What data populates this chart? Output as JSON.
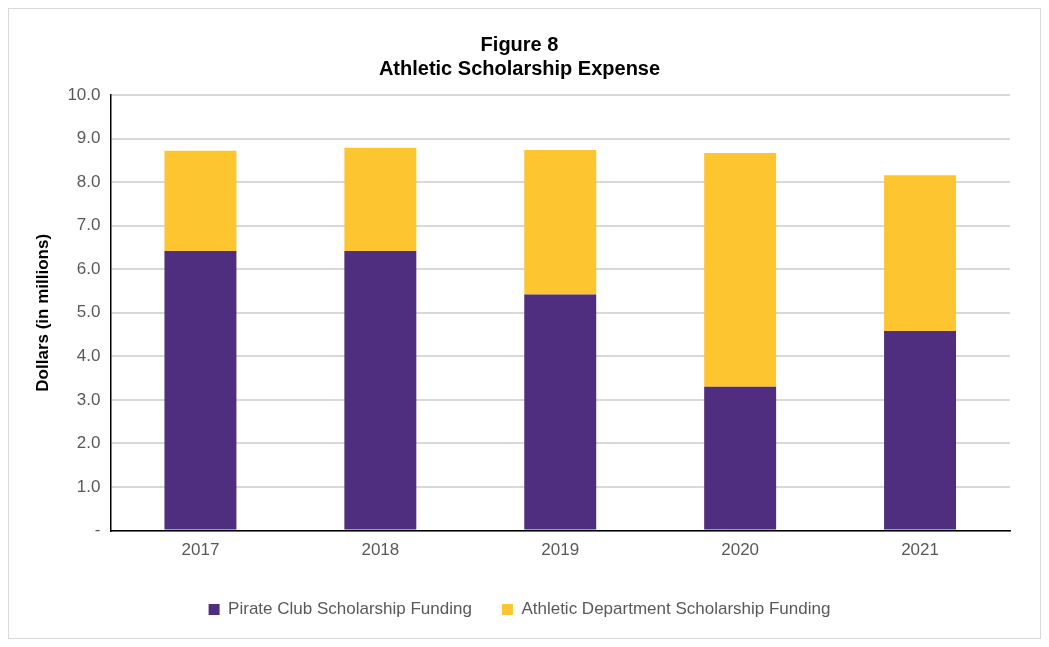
{
  "chart_data": {
    "type": "bar",
    "title": "Figure 8\nAthletic Scholarship Expense",
    "ylabel": "Dollars (in millions)",
    "categories": [
      "2017",
      "2018",
      "2019",
      "2020",
      "2021"
    ],
    "stacked": true,
    "series": [
      {
        "name": "Pirate Club Scholarship Funding",
        "color": "#4f2d7f",
        "values": [
          6.42,
          6.42,
          5.42,
          3.3,
          4.58
        ]
      },
      {
        "name": "Athletic Department Scholarship Funding",
        "color": "#fdc530",
        "values": [
          2.3,
          2.37,
          3.32,
          5.37,
          3.58
        ]
      }
    ],
    "ylim": [
      0,
      10
    ],
    "yticks": [
      {
        "value": 0,
        "label": "-"
      },
      {
        "value": 1,
        "label": "1.0"
      },
      {
        "value": 2,
        "label": "2.0"
      },
      {
        "value": 3,
        "label": "3.0"
      },
      {
        "value": 4,
        "label": "4.0"
      },
      {
        "value": 5,
        "label": "5.0"
      },
      {
        "value": 6,
        "label": "6.0"
      },
      {
        "value": 7,
        "label": "7.0"
      },
      {
        "value": 8,
        "label": "8.0"
      },
      {
        "value": 9,
        "label": "9.0"
      },
      {
        "value": 10,
        "label": "10.0"
      }
    ],
    "grid": "y",
    "legend": "bottom"
  }
}
